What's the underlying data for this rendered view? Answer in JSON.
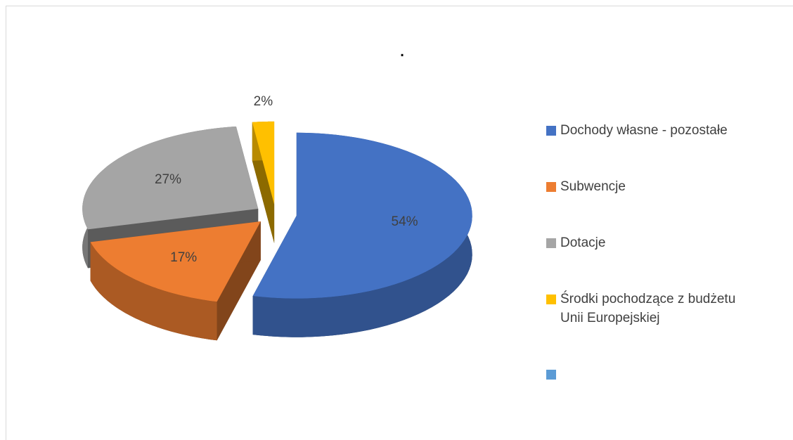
{
  "chart_data": {
    "type": "pie",
    "title": ".",
    "categories": [
      "Dochody własne - pozostałe",
      "Subwencje",
      "Dotacje",
      "Środki pochodzące z budżetu Unii Europejskiej",
      null
    ],
    "values": [
      54,
      17,
      27,
      2,
      null
    ],
    "value_labels": [
      "54%",
      "17%",
      "27%",
      "2%",
      null
    ],
    "colors": [
      "#4472c4",
      "#ed7d31",
      "#a5a5a5",
      "#ffc000",
      "#5b9bd5"
    ],
    "legend": "right",
    "exploded": true,
    "three_d": true
  }
}
